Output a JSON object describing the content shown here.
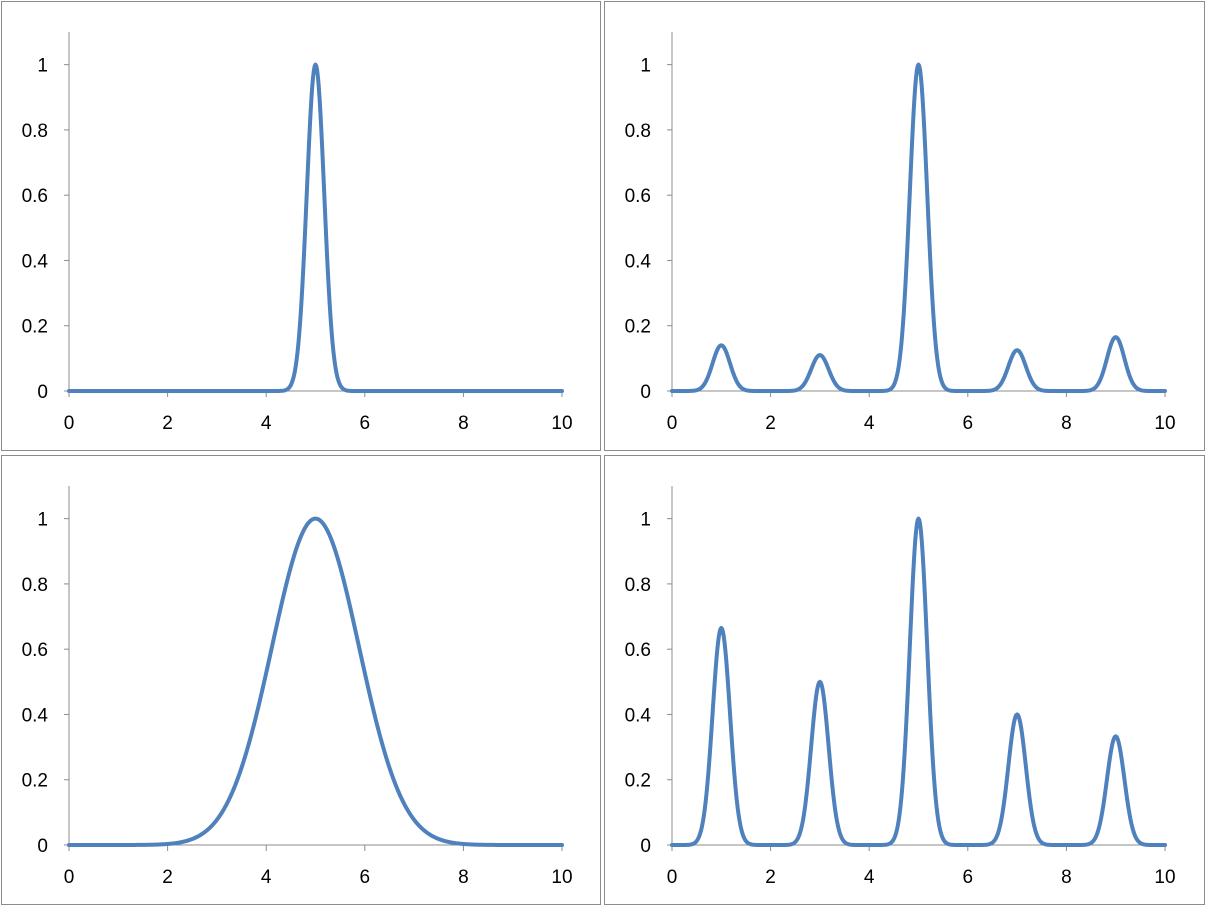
{
  "colors": {
    "series_line": "#4f81bd",
    "axis": "#8c8c8c",
    "frame": "#8c8c8c",
    "text": "#000000"
  },
  "chart_data": [
    {
      "type": "line",
      "xlim": [
        0,
        10
      ],
      "ylim": [
        0,
        1.1
      ],
      "x_ticks": [
        "0",
        "2",
        "4",
        "6",
        "8",
        "10"
      ],
      "y_ticks": [
        "0",
        "0.2",
        "0.4",
        "0.6",
        "0.8",
        "1"
      ],
      "grid": false,
      "legend": "none",
      "series": [
        {
          "peaks": [
            {
              "x": 5,
              "y": 1,
              "width": 0.25
            }
          ]
        }
      ]
    },
    {
      "type": "line",
      "xlim": [
        0,
        10
      ],
      "ylim": [
        0,
        1.1
      ],
      "x_ticks": [
        "0",
        "2",
        "4",
        "6",
        "8",
        "10"
      ],
      "y_ticks": [
        "0",
        "0.2",
        "0.4",
        "0.6",
        "0.8",
        "1"
      ],
      "grid": false,
      "legend": "none",
      "series": [
        {
          "peaks": [
            {
              "x": 1,
              "y": 0.14,
              "width": 0.25
            },
            {
              "x": 3,
              "y": 0.11,
              "width": 0.25
            },
            {
              "x": 5,
              "y": 1,
              "width": 0.25
            },
            {
              "x": 7,
              "y": 0.125,
              "width": 0.25
            },
            {
              "x": 9,
              "y": 0.165,
              "width": 0.25
            }
          ]
        }
      ]
    },
    {
      "type": "line",
      "xlim": [
        0,
        10
      ],
      "ylim": [
        0,
        1.1
      ],
      "x_ticks": [
        "0",
        "2",
        "4",
        "6",
        "8",
        "10"
      ],
      "y_ticks": [
        "0",
        "0.2",
        "0.4",
        "0.6",
        "0.8",
        "1"
      ],
      "grid": false,
      "legend": "none",
      "series": [
        {
          "peaks": [
            {
              "x": 5,
              "y": 1,
              "width": 1.25
            }
          ]
        }
      ]
    },
    {
      "type": "line",
      "xlim": [
        0,
        10
      ],
      "ylim": [
        0,
        1.1
      ],
      "x_ticks": [
        "0",
        "2",
        "4",
        "6",
        "8",
        "10"
      ],
      "y_ticks": [
        "0",
        "0.2",
        "0.4",
        "0.6",
        "0.8",
        "1"
      ],
      "grid": false,
      "legend": "none",
      "series": [
        {
          "peaks": [
            {
              "x": 1,
              "y": 0.665,
              "width": 0.25
            },
            {
              "x": 3,
              "y": 0.5,
              "width": 0.25
            },
            {
              "x": 5,
              "y": 1,
              "width": 0.25
            },
            {
              "x": 7,
              "y": 0.4,
              "width": 0.25
            },
            {
              "x": 9,
              "y": 0.333,
              "width": 0.25
            }
          ]
        }
      ]
    }
  ]
}
